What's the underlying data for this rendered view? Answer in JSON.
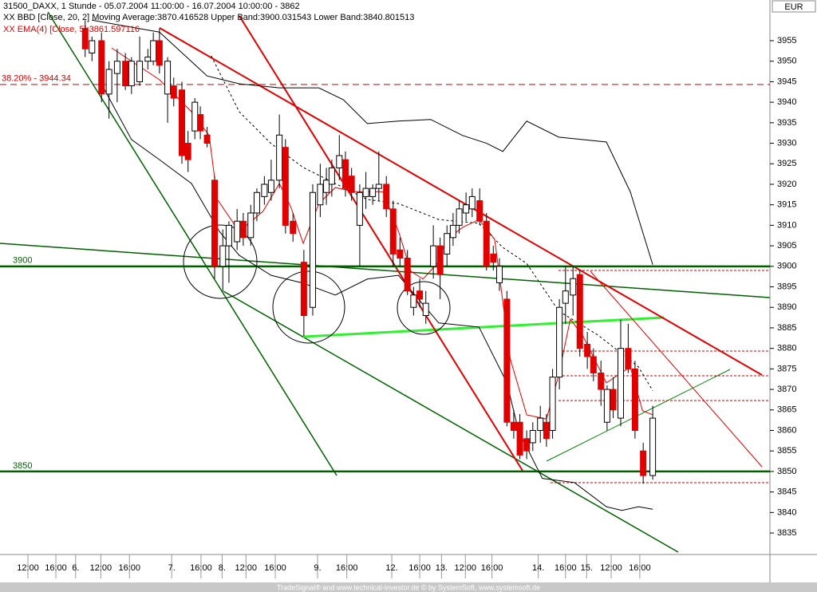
{
  "chart_data": {
    "type": "candlestick",
    "title": "31500_DAXX, 1 Stunde - 05.07.2004 11:00:00 - 16.07.2004 10:00:00 - 3862",
    "legend": [
      "XX BBD [Close, 20, 2] Moving Average:3870.416528 Upper Band:3900.031543 Lower Band:3840.801513",
      "XX EMA(4) [Close, 5]:3861.597116"
    ],
    "currency": "EUR",
    "footer": "TradeSignal® and www.technical-investor.de © by SystemSoft, www.systemsoft.de",
    "up_color": "#ffffff",
    "down_color": "#e00000",
    "xlim": [
      0,
      113
    ],
    "ylim": [
      3829.76,
      3964.92
    ],
    "yticks": [
      3835,
      3840,
      3845,
      3850,
      3855,
      3860,
      3865,
      3870,
      3875,
      3880,
      3885,
      3890,
      3895,
      3900,
      3905,
      3910,
      3915,
      3920,
      3925,
      3930,
      3935,
      3940,
      3945,
      3950,
      3955
    ],
    "xticks": [
      {
        "value": 4.1,
        "label": "12:00"
      },
      {
        "value": 8.2,
        "label": "16:00"
      },
      {
        "value": 11.1,
        "label": "6."
      },
      {
        "value": 14.8,
        "label": "12:00"
      },
      {
        "value": 19,
        "label": "16:00"
      },
      {
        "value": 25.2,
        "label": "7."
      },
      {
        "value": 29.5,
        "label": "16:00"
      },
      {
        "value": 32.6,
        "label": "8."
      },
      {
        "value": 36.1,
        "label": "12:00"
      },
      {
        "value": 40.4,
        "label": "16:00"
      },
      {
        "value": 46.6,
        "label": "9."
      },
      {
        "value": 50.9,
        "label": "16:00"
      },
      {
        "value": 57.5,
        "label": "12."
      },
      {
        "value": 61.6,
        "label": "16:00"
      },
      {
        "value": 64.8,
        "label": "13."
      },
      {
        "value": 68.3,
        "label": "12:00"
      },
      {
        "value": 72.2,
        "label": "16:00"
      },
      {
        "value": 79,
        "label": "14."
      },
      {
        "value": 83,
        "label": "16:00"
      },
      {
        "value": 86.1,
        "label": "15."
      },
      {
        "value": 89.7,
        "label": "12:00"
      },
      {
        "value": 93.9,
        "label": "16:00"
      }
    ],
    "x": [
      12.5,
      13.5,
      14.9,
      16.0,
      17.2,
      18.4,
      19.3,
      20.5,
      21.7,
      22.5,
      23.4,
      24.6,
      25.5,
      26.7,
      27.6,
      28.6,
      29.4,
      30.4,
      31.5,
      32.7,
      33.6,
      34.8,
      35.7,
      36.8,
      37.7,
      38.8,
      39.8,
      41.0,
      41.9,
      43.0,
      44.6,
      45.9,
      47.0,
      47.9,
      48.7,
      49.8,
      50.7,
      51.6,
      52.8,
      53.7,
      54.7,
      55.6,
      56.7,
      57.7,
      58.7,
      59.8,
      60.7,
      61.6,
      62.5,
      63.6,
      64.6,
      65.6,
      66.5,
      67.4,
      68.4,
      69.3,
      70.4,
      71.4,
      72.4,
      73.3,
      74.4,
      75.4,
      76.3,
      77.3,
      78.2,
      79.3,
      80.2,
      81.1,
      82.1,
      83.0,
      84.1,
      85.1,
      86.2,
      87.1,
      88.2,
      89.1,
      90.0,
      91.1,
      92.2,
      93.2,
      94.4,
      95.8
    ],
    "open": [
      3958,
      3952,
      3955,
      3942,
      3947,
      3950,
      3944,
      3945,
      3950,
      3950,
      3955,
      3942,
      3944,
      3943,
      3930,
      3933,
      3937,
      3932,
      3921,
      3900,
      3905,
      3906,
      3911,
      3907,
      3913,
      3917,
      3918,
      3921,
      3929,
      3911,
      3901,
      3890,
      3915,
      3918,
      3920,
      3924,
      3926,
      3922,
      3910,
      3917,
      3917,
      3919,
      3920,
      3914,
      3904,
      3902,
      3890,
      3894,
      3888,
      3900,
      3905,
      3903,
      3907,
      3910,
      3913,
      3914,
      3916,
      3911,
      3903,
      3896,
      3892,
      3862,
      3862,
      3858,
      3857,
      3860,
      3862,
      3860,
      3873,
      3891,
      3893,
      3898,
      3881,
      3878,
      3874,
      3862,
      3870,
      3863,
      3880,
      3875,
      3855,
      3849
    ],
    "high": [
      3960,
      3956,
      3957,
      3950,
      3953,
      3952,
      3951,
      3956,
      3953,
      3957,
      3958,
      3951,
      3946,
      3945,
      3933,
      3941,
      3939,
      3934,
      3922,
      3909,
      3911,
      3914,
      3913,
      3915,
      3919,
      3922,
      3926,
      3937,
      3931,
      3913,
      3904,
      3920,
      3925,
      3924,
      3926,
      3932,
      3928,
      3924,
      3920,
      3923,
      3920,
      3928,
      3922,
      3916,
      3907,
      3904,
      3895,
      3897,
      3894,
      3910,
      3907,
      3910,
      3913,
      3916,
      3918,
      3919,
      3919,
      3913,
      3905,
      3902,
      3894,
      3865,
      3864,
      3860,
      3862,
      3866,
      3864,
      3875,
      3892,
      3900,
      3900,
      3899,
      3884,
      3880,
      3877,
      3871,
      3873,
      3887,
      3886,
      3877,
      3857,
      3866
    ],
    "low": [
      3951,
      3950,
      3940,
      3936,
      3940,
      3943,
      3942,
      3944,
      3948,
      3949,
      3947,
      3935,
      3939,
      3925,
      3923,
      3931,
      3931,
      3929,
      3897,
      3894,
      3896,
      3904,
      3905,
      3905,
      3911,
      3915,
      3916,
      3919,
      3908,
      3906,
      3883,
      3888,
      3912,
      3915,
      3917,
      3921,
      3917,
      3916,
      3900,
      3914,
      3915,
      3916,
      3912,
      3900,
      3900,
      3893,
      3888,
      3890,
      3886,
      3897,
      3892,
      3900,
      3905,
      3908,
      3911,
      3912,
      3910,
      3899,
      3899,
      3894,
      3861,
      3858,
      3853,
      3853,
      3855,
      3857,
      3856,
      3858,
      3870,
      3886,
      3888,
      3878,
      3875,
      3872,
      3866,
      3860,
      3863,
      3861,
      3874,
      3858,
      3847,
      3848
    ],
    "close": [
      3953,
      3955,
      3942,
      3948,
      3950,
      3944,
      3950,
      3950,
      3951,
      3955,
      3949,
      3950,
      3941,
      3927,
      3926,
      3940,
      3933,
      3930,
      3900,
      3905,
      3910,
      3911,
      3907,
      3913,
      3918,
      3920,
      3921,
      3932,
      3910,
      3908,
      3888,
      3918,
      3920,
      3921,
      3924,
      3927,
      3919,
      3918,
      3918,
      3919,
      3919,
      3920,
      3914,
      3903,
      3902,
      3894,
      3893,
      3892,
      3891,
      3905,
      3898,
      3908,
      3910,
      3914,
      3915,
      3917,
      3911,
      3900,
      3901,
      3900,
      3862,
      3860,
      3854,
      3855,
      3860,
      3863,
      3858,
      3873,
      3890,
      3894,
      3897,
      3880,
      3878,
      3874,
      3870,
      3870,
      3865,
      3880,
      3875,
      3860,
      3849,
      3863
    ],
    "upper_band": {
      "color": "#000000",
      "x": [
        13.5,
        23.4,
        30.4,
        35.1,
        41.0,
        46.8,
        50.4,
        53.9,
        58.5,
        63.2,
        67.9,
        71.4,
        73.8,
        77.3,
        82.0,
        89.0,
        92.5,
        95.8
      ],
      "values": [
        3960,
        3957.1,
        3946.4,
        3944.5,
        3943.5,
        3943.5,
        3940.6,
        3934.8,
        3935.4,
        3935.8,
        3931.9,
        3930,
        3928,
        3935.4,
        3931.5,
        3930.3,
        3918.2,
        3900.4
      ]
    },
    "lower_band": {
      "color": "#000000",
      "x": [
        15.2,
        19.3,
        23.4,
        28.1,
        32.2,
        35.1,
        39.8,
        44.5,
        49.2,
        53.9,
        58.5,
        60.9,
        64.4,
        70.3,
        74.4,
        76.1,
        79.6,
        84.3,
        89.0,
        91.3,
        93.7,
        95.8
      ],
      "values": [
        3943.5,
        3930.9,
        3926,
        3920.2,
        3908.5,
        3902.7,
        3897.8,
        3895.9,
        3893,
        3896.9,
        3897.8,
        3893,
        3886.2,
        3885.2,
        3871.6,
        3859.9,
        3848.3,
        3847.3,
        3841.4,
        3840.5,
        3841.4,
        3840.8
      ]
    },
    "moving_average": {
      "color": "#000000",
      "x": [
        31.0,
        35.1,
        39.8,
        44.5,
        49.2,
        53.9,
        58.5,
        64.4,
        70.3,
        73.8,
        77.3,
        82.0,
        87.8,
        93.7,
        95.8
      ],
      "values": [
        3951.3,
        3937.7,
        3929.9,
        3924.1,
        3920.2,
        3916.3,
        3915.3,
        3911.4,
        3910.5,
        3904.6,
        3900.7,
        3889.1,
        3883.2,
        3875.5,
        3869.7
      ]
    },
    "ema": {
      "color": "#e00000",
      "x": [
        16.4,
        23.4,
        28.1,
        30.7,
        31.9,
        35.1,
        38.6,
        41.0,
        42.7,
        44.5,
        46.8,
        49.2,
        52.1,
        56.2,
        58.5,
        60.3,
        62.1,
        64.2,
        65.6,
        67.9,
        70.3,
        72.6,
        74.9,
        77.3,
        80.2,
        82.0,
        83.7,
        85.5,
        89.0,
        92.5,
        94.3,
        95.8
      ],
      "values": [
        3953.2,
        3945.5,
        3937.7,
        3931.9,
        3916.3,
        3908.5,
        3913.4,
        3920.2,
        3914.4,
        3905.6,
        3915.3,
        3919.2,
        3918.2,
        3918.2,
        3908.5,
        3898.8,
        3896.9,
        3900.8,
        3906.6,
        3909.5,
        3911.4,
        3906.6,
        3877.4,
        3863.8,
        3862.8,
        3873.5,
        3887.1,
        3883.2,
        3871.6,
        3875.5,
        3864.8,
        3863.8
      ]
    },
    "annotations": [
      {
        "text": "38.20% - 3944.34",
        "value": 3944.34,
        "color": "#d00000"
      },
      {
        "text": "3900",
        "value": 3900,
        "color": "#006000"
      },
      {
        "text": "3850",
        "value": 3850,
        "color": "#006000"
      }
    ]
  }
}
